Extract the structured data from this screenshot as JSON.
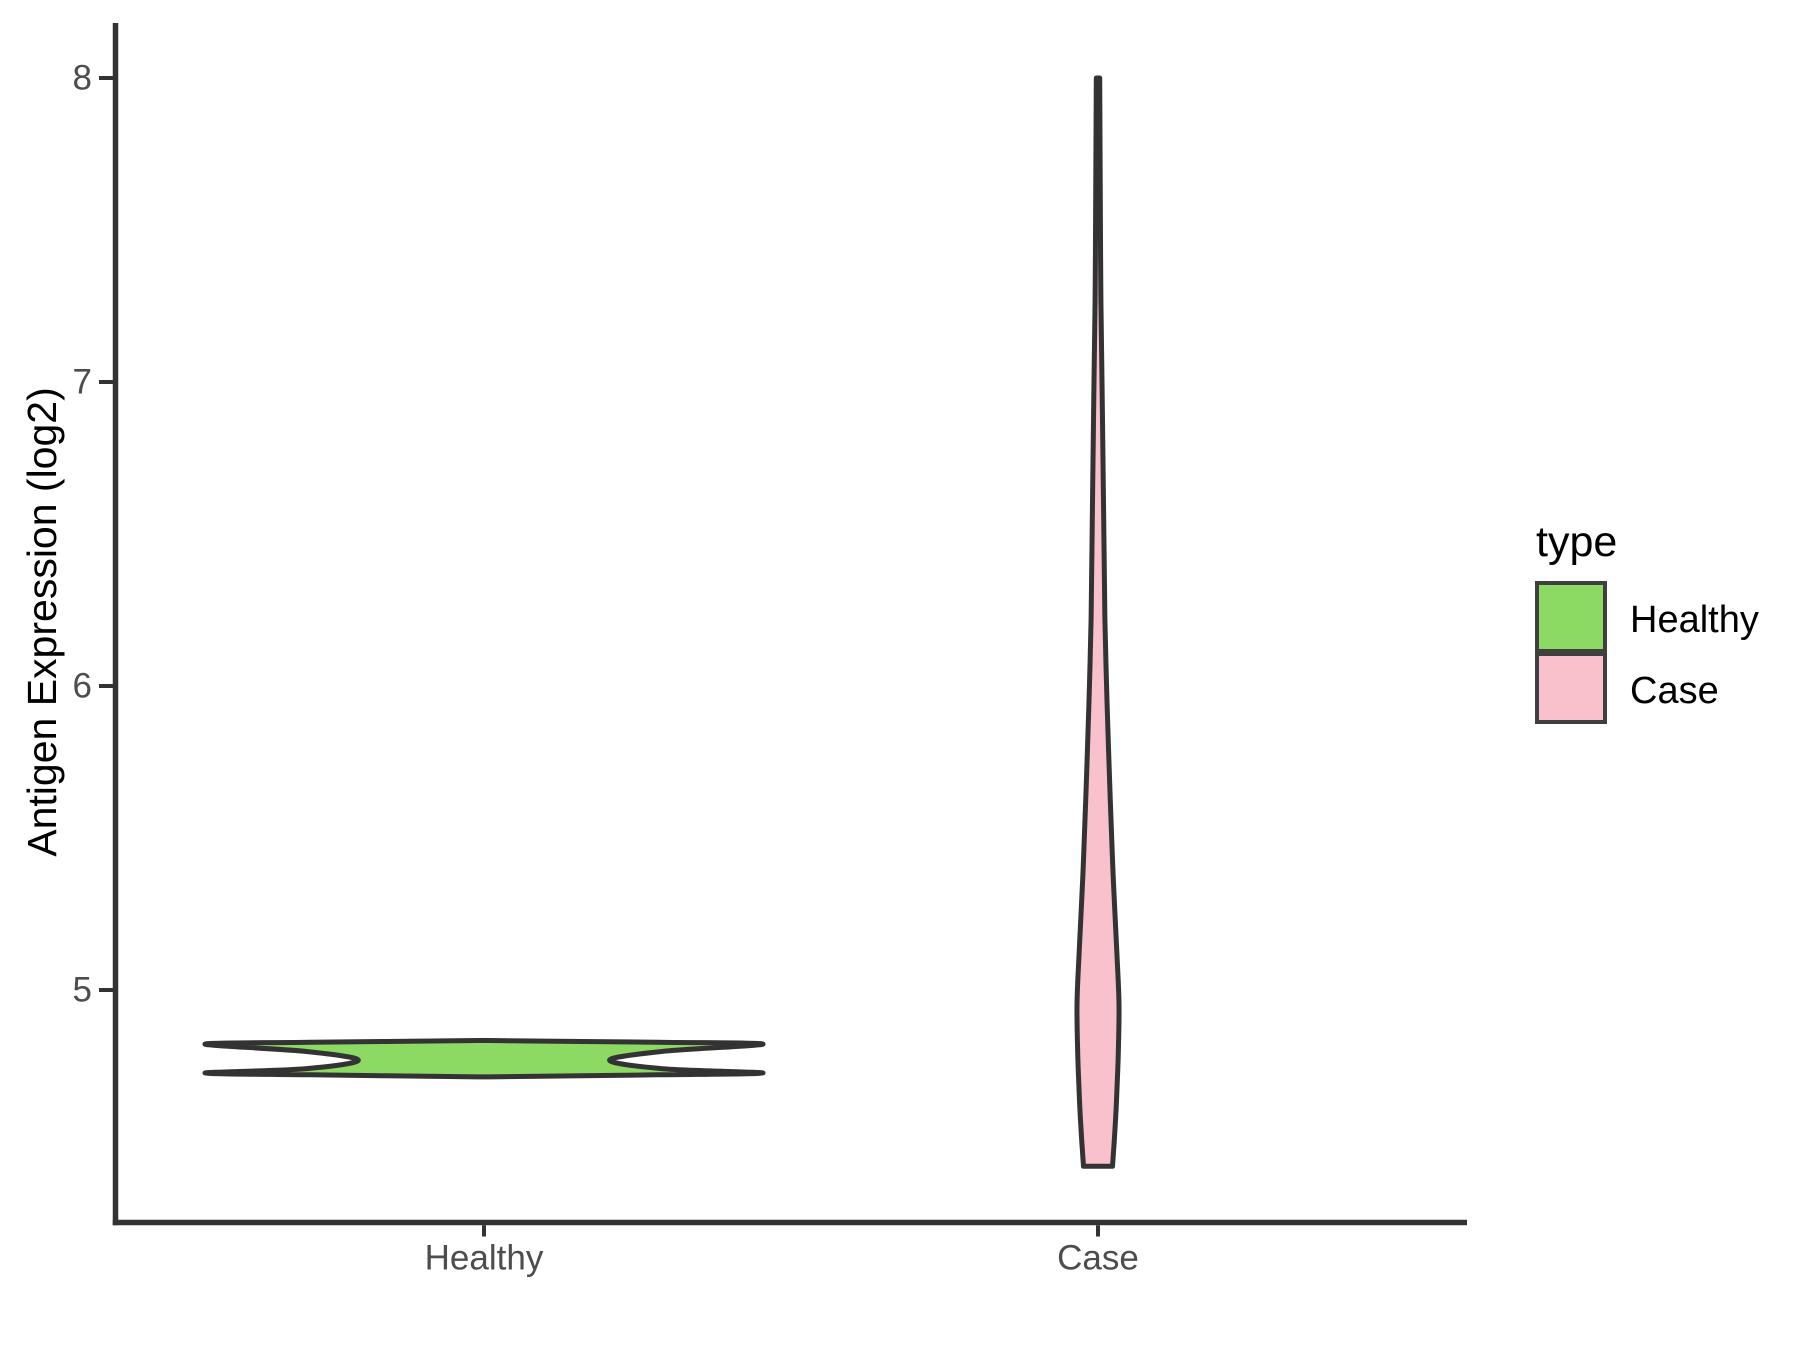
{
  "chart_data": {
    "type": "violin",
    "title": "",
    "xlabel": "",
    "ylabel": "Antigen Expression (log2)",
    "categories": [
      "Healthy",
      "Case"
    ],
    "y_ticks": [
      "5",
      "6",
      "7",
      "8"
    ],
    "y_tick_values": [
      5,
      6,
      7,
      8
    ],
    "ylim": [
      4.3,
      8.35
    ],
    "grid": "off",
    "legend": {
      "title": "type",
      "position": "right",
      "entries": [
        {
          "label": "Healthy",
          "color": "#8CD964"
        },
        {
          "label": "Case",
          "color": "#F8C1CC"
        }
      ]
    },
    "series": [
      {
        "name": "Healthy",
        "fill": "#8CD964",
        "value_range": [
          4.714,
          4.834
        ],
        "modes": [
          4.727,
          4.822
        ],
        "antimode": 4.769,
        "profile": [
          [
            4.834,
            0.02
          ],
          [
            4.828,
            0.62
          ],
          [
            4.822,
            1.0
          ],
          [
            4.798,
            0.64
          ],
          [
            4.769,
            0.45
          ],
          [
            4.741,
            0.64
          ],
          [
            4.727,
            1.0
          ],
          [
            4.721,
            0.62
          ],
          [
            4.714,
            0.02
          ]
        ]
      },
      {
        "name": "Case",
        "fill": "#F8C1CC",
        "value_range": [
          4.42,
          8.0
        ],
        "modes": [
          4.95
        ],
        "antimode": null,
        "profile": [
          [
            8.0,
            0.08
          ],
          [
            7.6,
            0.11
          ],
          [
            7.27,
            0.14
          ],
          [
            6.9,
            0.21
          ],
          [
            6.55,
            0.27
          ],
          [
            6.22,
            0.33
          ],
          [
            5.95,
            0.43
          ],
          [
            5.65,
            0.57
          ],
          [
            5.38,
            0.72
          ],
          [
            5.12,
            0.9
          ],
          [
            4.95,
            1.0
          ],
          [
            4.78,
            0.96
          ],
          [
            4.62,
            0.87
          ],
          [
            4.5,
            0.77
          ],
          [
            4.42,
            0.69
          ]
        ]
      }
    ]
  },
  "colors": {
    "background": "#FFFFFF",
    "outline": "#333333",
    "axis_line": "#333333",
    "tick_mark": "#333333",
    "axis_text": "#4D4D4D",
    "title_text": "#000000",
    "legend_text": "#000000",
    "key_border": "#3F3F3F"
  }
}
